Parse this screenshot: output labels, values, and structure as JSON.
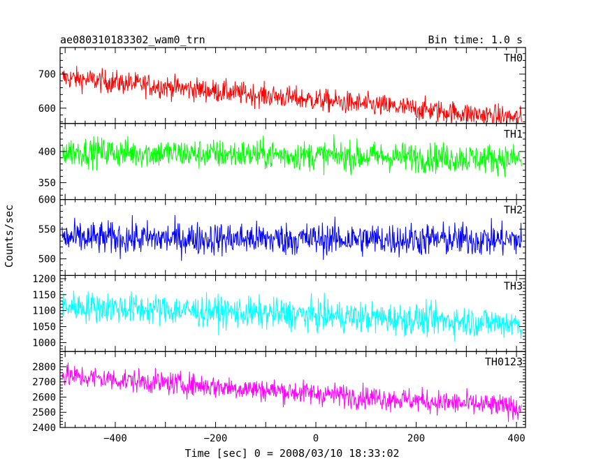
{
  "header": {
    "title": "ae080310183302_wam0_trn",
    "bin_time": "Bin time: 1.0 s"
  },
  "chart_data": {
    "type": "line",
    "title": "ae080310183302_wam0_trn",
    "xlabel": "Time [sec] 0 = 2008/03/10 18:33:02",
    "ylabel": "Counts/sec",
    "xlim": [
      -510,
      418
    ],
    "x_range": [
      -506,
      410
    ],
    "x_ticks": [
      -400,
      -200,
      0,
      200,
      400
    ],
    "x_tick_labels": [
      "−400",
      "−200",
      "0",
      "200",
      "400"
    ],
    "grid": false,
    "panels": [
      {
        "name": "TH0",
        "color": "#ff0000",
        "ylim": [
          555,
          778
        ],
        "yticks": [
          600,
          700
        ],
        "trend_start": 690,
        "trend_end": 570,
        "noise": 24
      },
      {
        "name": "TH1",
        "color": "#00ff00",
        "ylim": [
          323,
          445
        ],
        "yticks": [
          350,
          400
        ],
        "trend_start": 400,
        "trend_end": 388,
        "noise": 17
      },
      {
        "name": "TH2",
        "color": "#0000ff",
        "ylim": [
          472,
          600
        ],
        "yticks": [
          500,
          550,
          600
        ],
        "trend_start": 535,
        "trend_end": 532,
        "noise": 20
      },
      {
        "name": "TH3",
        "color": "#00ffff",
        "ylim": [
          972,
          1210
        ],
        "yticks": [
          1000,
          1050,
          1100,
          1150,
          1200
        ],
        "trend_start": 1115,
        "trend_end": 1060,
        "noise": 35
      },
      {
        "name": "TH0123",
        "color": "#ff00ff",
        "ylim": [
          2400,
          2900
        ],
        "yticks": [
          2400,
          2500,
          2600,
          2700,
          2800
        ],
        "trend_start": 2740,
        "trend_end": 2530,
        "noise": 55
      }
    ]
  }
}
